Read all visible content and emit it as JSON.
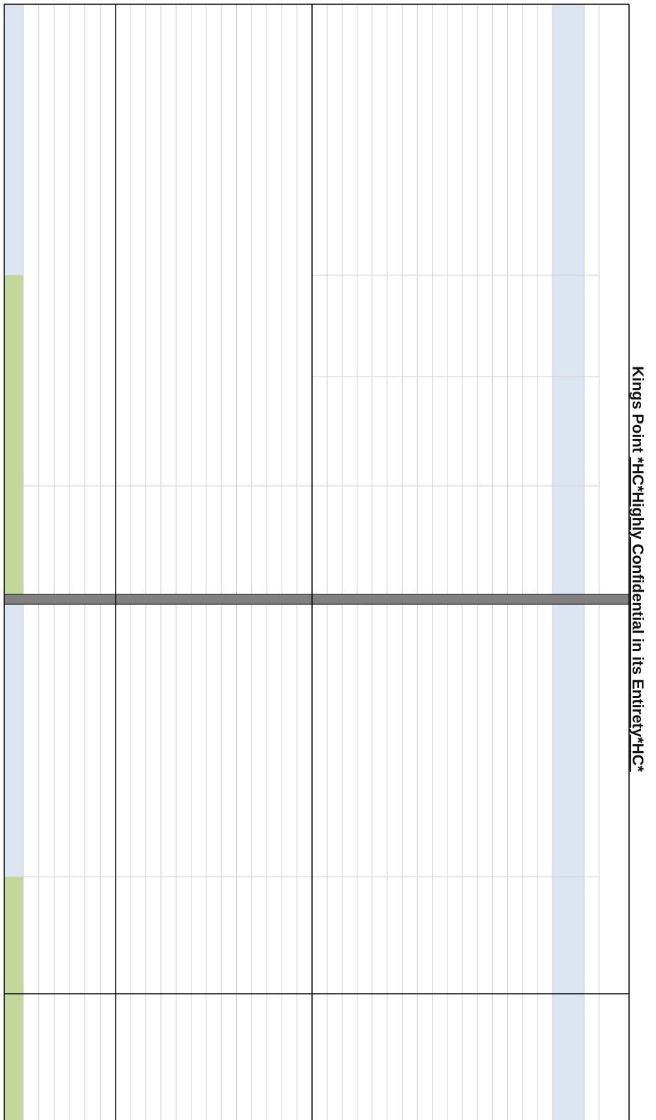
{
  "header": {
    "prefix": "Kings Point ",
    "title": "*HC*Highly Confidential in its Entirety*HC*"
  }
}
